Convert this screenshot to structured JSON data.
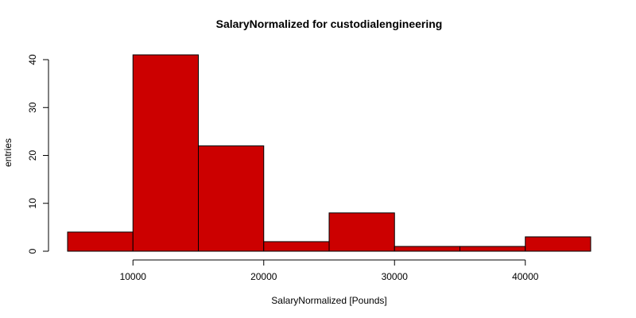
{
  "chart_data": {
    "type": "bar",
    "title": "SalaryNormalized for custodialengineering",
    "xlabel": "SalaryNormalized [Pounds]",
    "ylabel": "entries",
    "bin_edges": [
      5000,
      10000,
      15000,
      20000,
      25000,
      30000,
      35000,
      40000,
      45000
    ],
    "values": [
      4,
      41,
      22,
      2,
      8,
      1,
      1,
      3
    ],
    "x_ticks": [
      10000,
      20000,
      30000,
      40000
    ],
    "y_ticks": [
      0,
      10,
      20,
      30,
      40
    ],
    "xlim": [
      5000,
      45000
    ],
    "ylim": [
      0,
      41
    ],
    "bar_color": "#cc0000",
    "grid": false,
    "legend": "none"
  }
}
